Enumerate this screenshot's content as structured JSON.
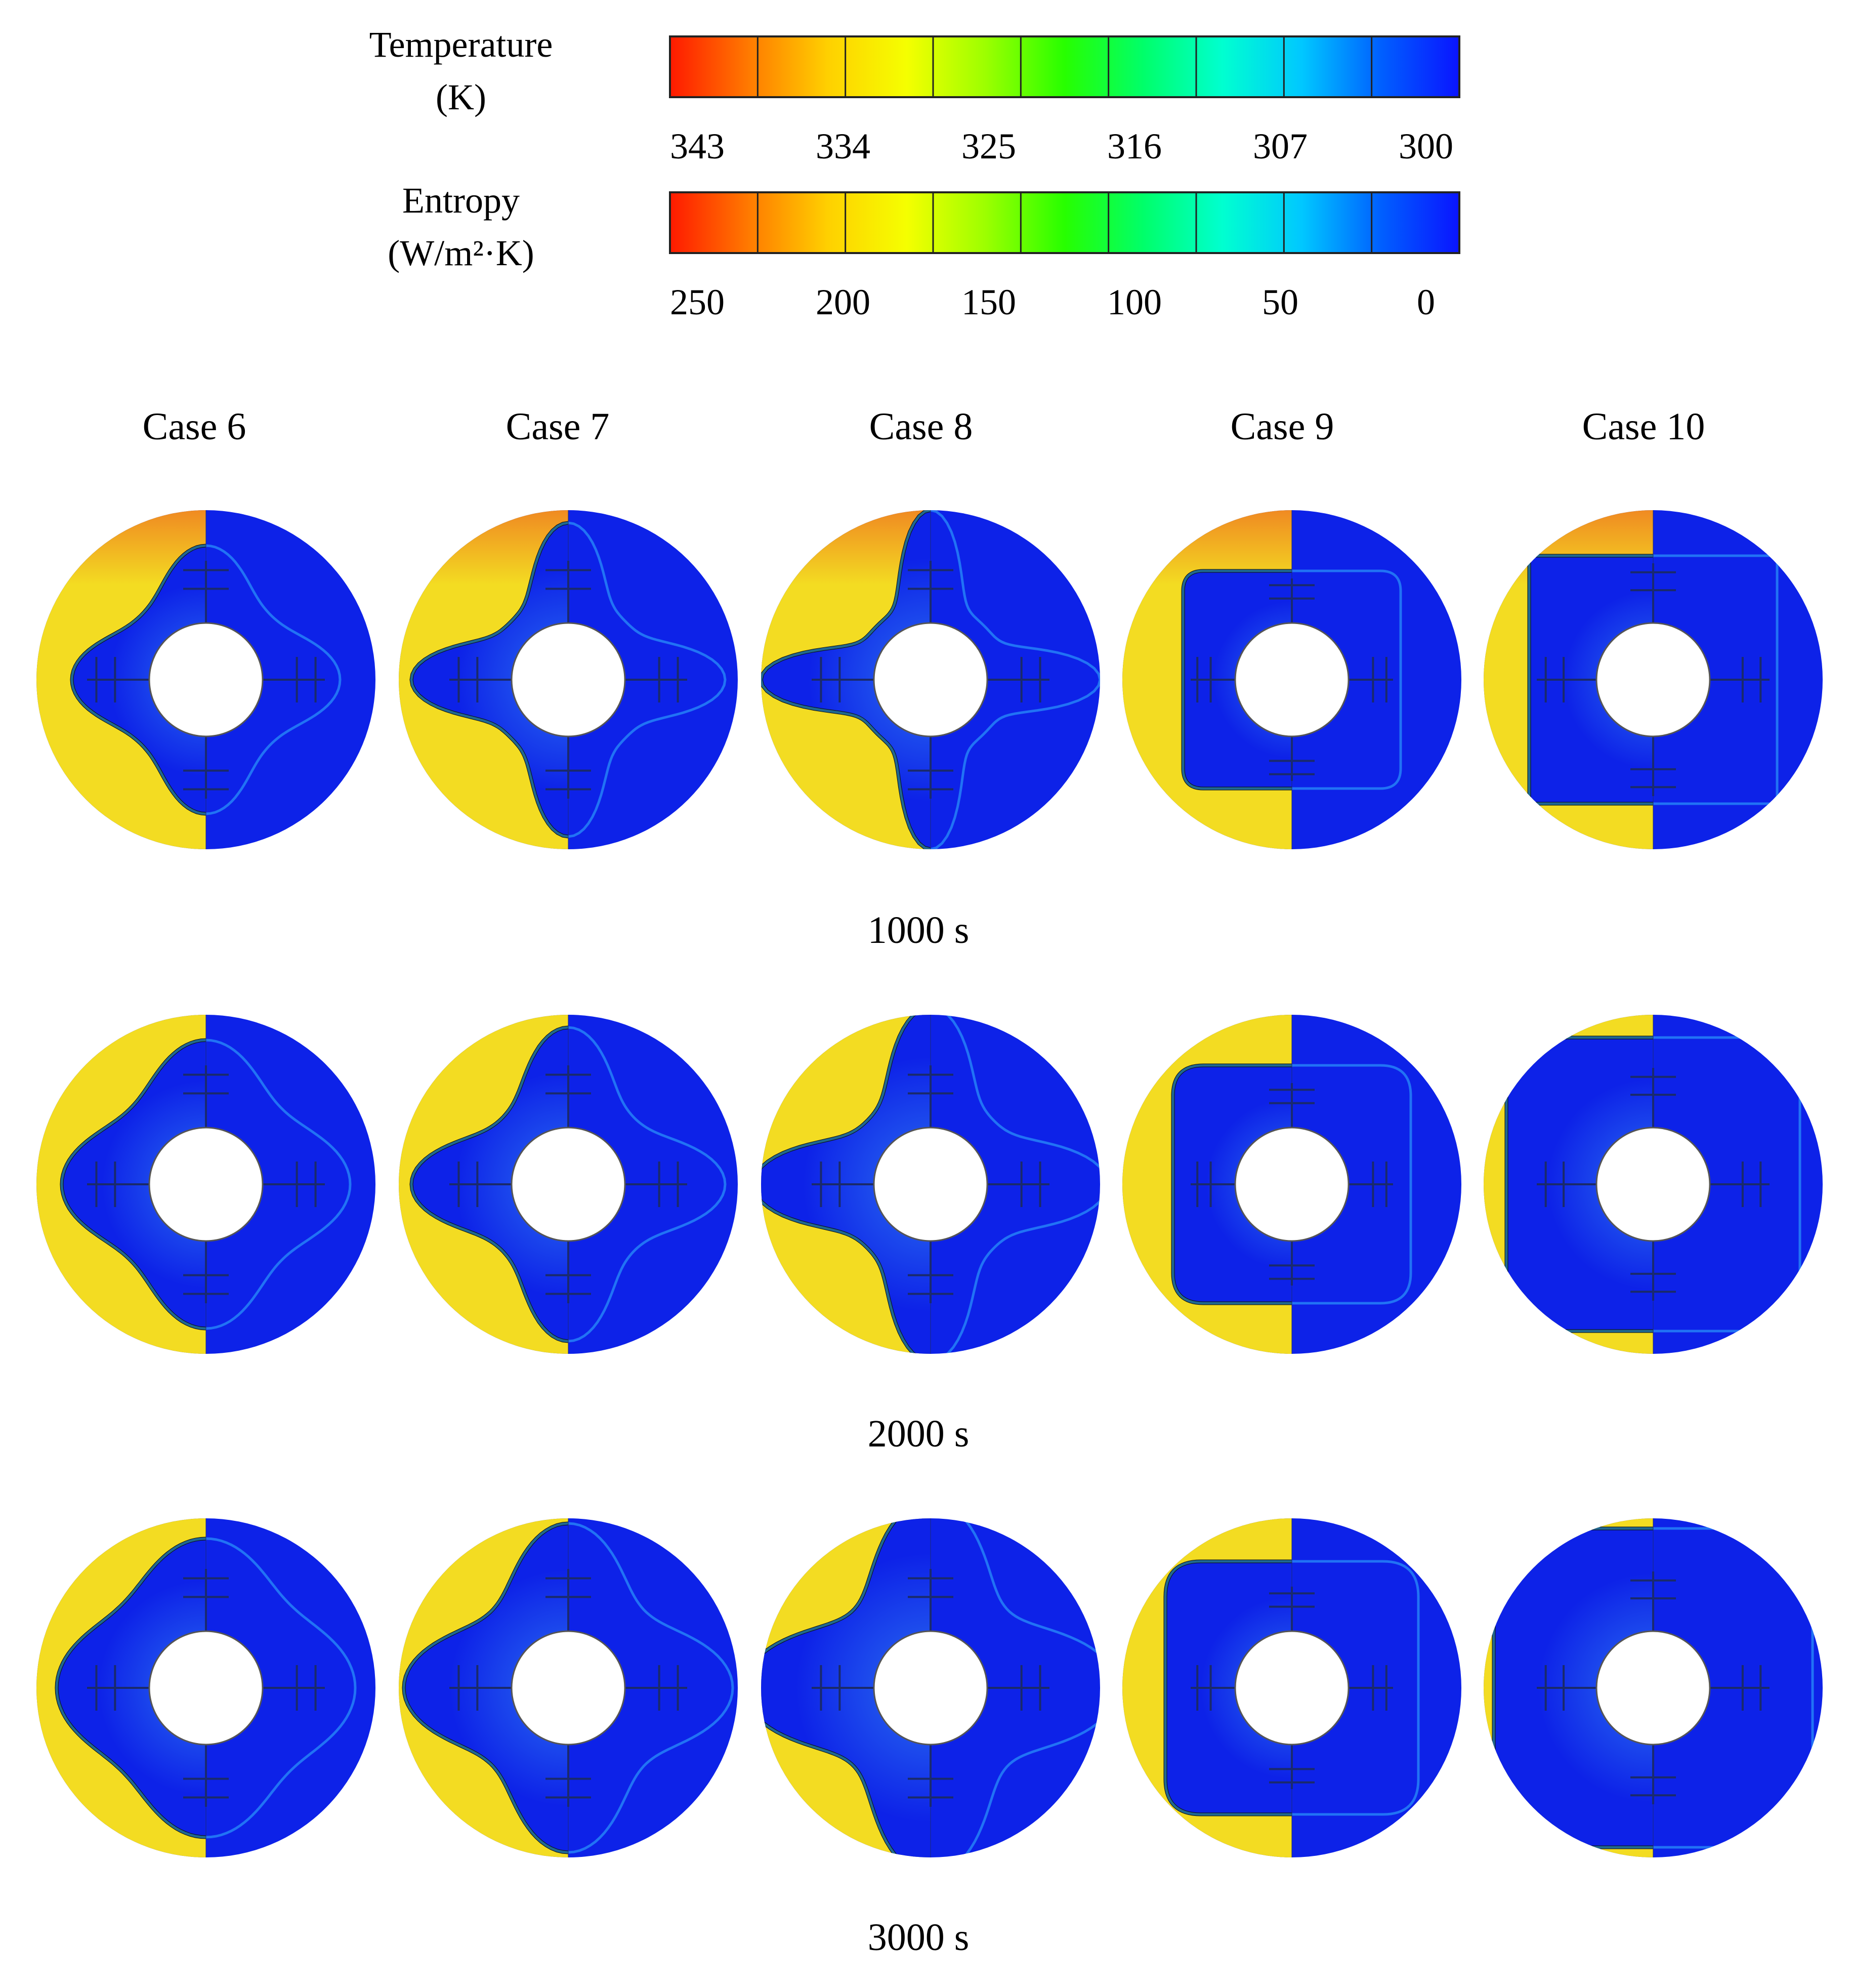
{
  "legend": {
    "temperature": {
      "title_line1": "Temperature",
      "title_line2": "(K)",
      "ticks": [
        "343",
        "334",
        "325",
        "316",
        "307",
        "300"
      ]
    },
    "entropy": {
      "title_line1": "Entropy",
      "title_line2": "(W/m²·K)",
      "ticks": [
        "250",
        "200",
        "150",
        "100",
        "50",
        "0"
      ]
    },
    "colormap": [
      "#ff1a00",
      "#ff7a00",
      "#ffd000",
      "#f5ff00",
      "#9cff00",
      "#27ff00",
      "#00ff6a",
      "#00ffd0",
      "#00c8ff",
      "#0060ff",
      "#0a14ff"
    ],
    "segments": 9
  },
  "cases": [
    "Case 6",
    "Case 7",
    "Case 8",
    "Case 9",
    "Case 10"
  ],
  "times": [
    "1000 s",
    "2000 s",
    "3000 s"
  ],
  "colors": {
    "solid_melt": "#f3dc22",
    "hot_top": "#f08a22",
    "liquid": "#0d22e8",
    "liquid_light": "#2a6df0",
    "interface": "#0a0a0a",
    "fin": "#1a2a6a",
    "wall": "#555555"
  }
}
